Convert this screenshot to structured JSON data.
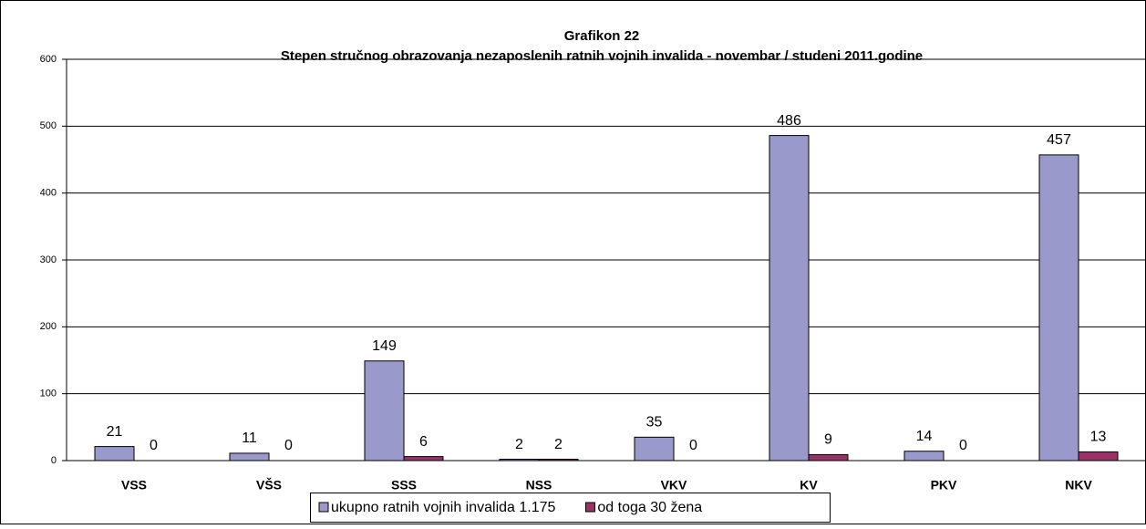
{
  "chart_data": {
    "type": "bar",
    "title": "Grafikon 22",
    "subtitle": "Stepen stručnog obrazovanja nezaposlenih ratnih vojnih invalida - novembar / studeni 2011.godine",
    "categories": [
      "VSS",
      "VŠS",
      "SSS",
      "NSS",
      "VKV",
      "KV",
      "PKV",
      "NKV"
    ],
    "series": [
      {
        "name": "ukupno ratnih vojnih invalida 1.175",
        "color": "#9999cc",
        "values": [
          21,
          11,
          149,
          2,
          35,
          486,
          14,
          457
        ]
      },
      {
        "name": "od toga 30 žena",
        "color": "#993366",
        "values": [
          0,
          0,
          6,
          2,
          0,
          9,
          0,
          13
        ]
      }
    ],
    "ylim": [
      0,
      600
    ],
    "yticks": [
      0,
      100,
      200,
      300,
      400,
      500,
      600
    ],
    "grid": true,
    "legend": "bottom"
  }
}
